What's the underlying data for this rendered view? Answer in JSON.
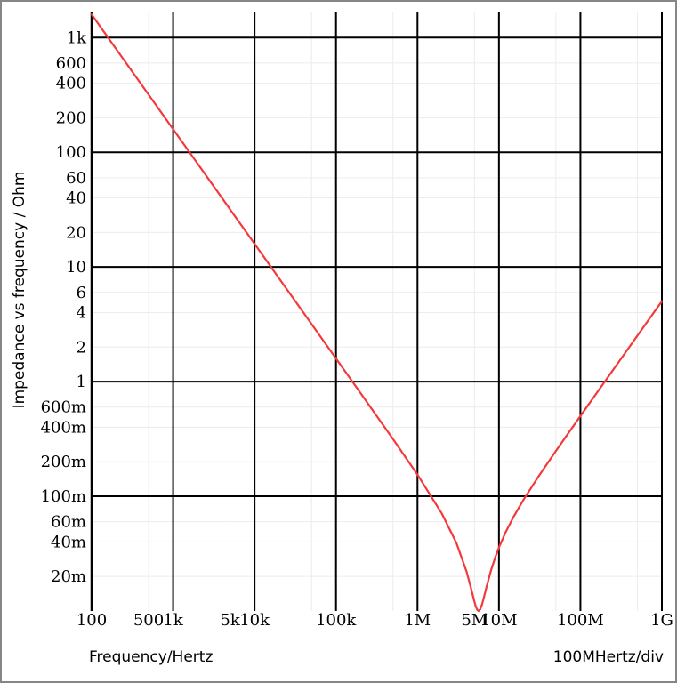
{
  "window": {
    "border_color": "#868686",
    "background_color": "#ffffff"
  },
  "chart_data": {
    "type": "line",
    "title": "",
    "xlabel": "Frequency/Hertz",
    "ylabel": "Impedance vs frequency / Ohm",
    "x_axis_note": "100MHertz/div",
    "x_scale": "log",
    "y_scale": "log",
    "xlim": [
      100,
      1000000000
    ],
    "ylim": [
      0.01,
      1650
    ],
    "grid": {
      "x_major": [
        100,
        1000,
        10000,
        100000,
        1000000,
        10000000,
        100000000,
        1000000000
      ],
      "x_minor": [
        500,
        5000,
        50000,
        500000,
        5000000,
        50000000,
        500000000
      ],
      "y_major": [
        1000,
        100,
        10,
        1,
        0.1
      ],
      "y_minor": [
        600,
        400,
        200,
        60,
        40,
        20,
        6,
        4,
        2,
        0.6,
        0.4,
        0.2,
        0.06,
        0.04,
        0.02
      ],
      "major_color": "#000000",
      "minor_color": "#ececec"
    },
    "x_ticks": [
      {
        "value": 100,
        "label": "100"
      },
      {
        "value": 500,
        "label": "500"
      },
      {
        "value": 1000,
        "label": "1k"
      },
      {
        "value": 5000,
        "label": "5k"
      },
      {
        "value": 10000,
        "label": "10k"
      },
      {
        "value": 100000,
        "label": "100k"
      },
      {
        "value": 1000000,
        "label": "1M"
      },
      {
        "value": 5000000,
        "label": "5M"
      },
      {
        "value": 10000000,
        "label": "10M"
      },
      {
        "value": 100000000,
        "label": "100M"
      },
      {
        "value": 1000000000,
        "label": "1G"
      }
    ],
    "y_ticks": [
      {
        "value": 1000,
        "label": "1k"
      },
      {
        "value": 600,
        "label": "600"
      },
      {
        "value": 400,
        "label": "400"
      },
      {
        "value": 200,
        "label": "200"
      },
      {
        "value": 100,
        "label": "100"
      },
      {
        "value": 60,
        "label": "60"
      },
      {
        "value": 40,
        "label": "40"
      },
      {
        "value": 20,
        "label": "20"
      },
      {
        "value": 10,
        "label": "10"
      },
      {
        "value": 6,
        "label": "6"
      },
      {
        "value": 4,
        "label": "4"
      },
      {
        "value": 2,
        "label": "2"
      },
      {
        "value": 1,
        "label": "1"
      },
      {
        "value": 0.6,
        "label": "600m"
      },
      {
        "value": 0.4,
        "label": "400m"
      },
      {
        "value": 0.2,
        "label": "200m"
      },
      {
        "value": 0.1,
        "label": "100m"
      },
      {
        "value": 0.06,
        "label": "60m"
      },
      {
        "value": 0.04,
        "label": "40m"
      },
      {
        "value": 0.02,
        "label": "20m"
      }
    ],
    "series": [
      {
        "name": "impedance",
        "color": "#f4393d",
        "points": [
          [
            100,
            1591.5
          ],
          [
            200,
            795.8
          ],
          [
            500,
            318.3
          ],
          [
            1000,
            159.2
          ],
          [
            2000,
            79.58
          ],
          [
            5000,
            31.83
          ],
          [
            10000,
            15.92
          ],
          [
            20000,
            7.958
          ],
          [
            50000,
            3.183
          ],
          [
            100000,
            1.591
          ],
          [
            200000,
            0.7948
          ],
          [
            500000,
            0.316
          ],
          [
            1000000,
            0.1545
          ],
          [
            2000000,
            0.07024
          ],
          [
            3000000,
            0.03927
          ],
          [
            4000000,
            0.02208
          ],
          [
            4500000,
            0.01621
          ],
          [
            5000000,
            0.01204
          ],
          [
            5200000,
            0.01095
          ],
          [
            5400000,
            0.01027
          ],
          [
            5630000,
            0.01
          ],
          [
            5900000,
            0.01035
          ],
          [
            6200000,
            0.01141
          ],
          [
            6500000,
            0.01293
          ],
          [
            7000000,
            0.01597
          ],
          [
            8000000,
            0.02265
          ],
          [
            9000000,
            0.02931
          ],
          [
            10000000,
            0.03578
          ],
          [
            12000000,
            0.04811
          ],
          [
            15000000,
            0.06556
          ],
          [
            20000000,
            0.09311
          ],
          [
            30000000,
            0.14584
          ],
          [
            50000000,
            0.24835
          ],
          [
            70000000,
            0.34973
          ],
          [
            100000000,
            0.50116
          ],
          [
            150000000,
            0.75299
          ],
          [
            200000000,
            1.0046
          ],
          [
            300000000,
            1.5075
          ],
          [
            500000000,
            2.513
          ],
          [
            700000000,
            3.5184
          ],
          [
            1000000000,
            5.0264
          ]
        ]
      }
    ]
  }
}
